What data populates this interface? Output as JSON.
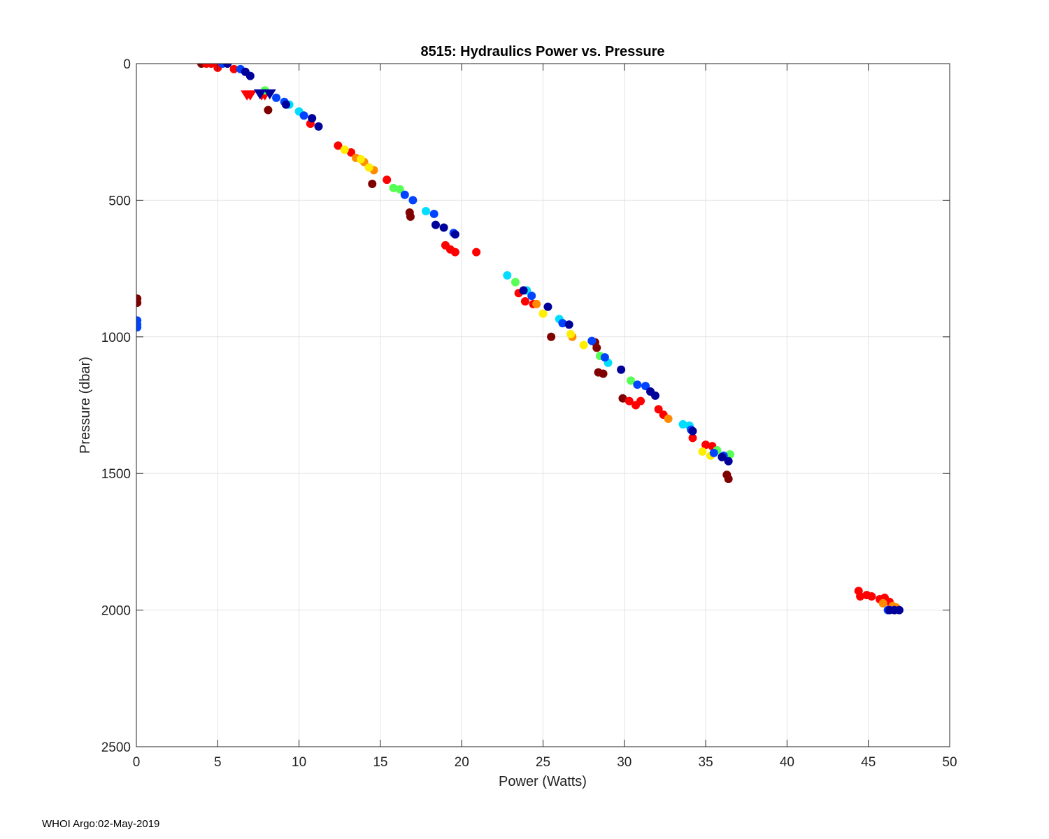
{
  "chart_data": {
    "type": "scatter",
    "title": "8515: Hydraulics Power vs. Pressure",
    "xlabel": "Power (Watts)",
    "ylabel": "Pressure (dbar)",
    "xlim": [
      0,
      50
    ],
    "ylim": [
      0,
      2500
    ],
    "y_reversed": true,
    "grid": true,
    "x_ticks": [
      "0",
      "5",
      "10",
      "15",
      "20",
      "25",
      "30",
      "35",
      "40",
      "45",
      "50"
    ],
    "y_ticks": [
      "0",
      "500",
      "1000",
      "1500",
      "2000",
      "2500"
    ],
    "color_scale": "jet (blue = early profiles, red = late profiles)",
    "series": [
      {
        "name": "dark-red",
        "color": "#800000",
        "marker": "circle",
        "points": [
          [
            0.05,
            860
          ],
          [
            0.05,
            875
          ],
          [
            4.0,
            0
          ],
          [
            8.1,
            170
          ],
          [
            14.5,
            440
          ],
          [
            16.8,
            545
          ],
          [
            16.85,
            560
          ],
          [
            25.5,
            1000
          ],
          [
            28.2,
            1020
          ],
          [
            28.3,
            1040
          ],
          [
            28.4,
            1130
          ],
          [
            28.7,
            1135
          ],
          [
            29.9,
            1225
          ],
          [
            36.3,
            1505
          ],
          [
            36.4,
            1520
          ]
        ]
      },
      {
        "name": "red",
        "color": "#ff0000",
        "marker": "circle",
        "points": [
          [
            4.3,
            0
          ],
          [
            4.6,
            0
          ],
          [
            5.0,
            15
          ],
          [
            6.0,
            20
          ],
          [
            10.7,
            220
          ],
          [
            12.4,
            300
          ],
          [
            13.2,
            325
          ],
          [
            15.4,
            425
          ],
          [
            19.0,
            665
          ],
          [
            19.3,
            680
          ],
          [
            19.6,
            690
          ],
          [
            20.9,
            690
          ],
          [
            23.5,
            840
          ],
          [
            23.9,
            870
          ],
          [
            24.4,
            880
          ],
          [
            30.3,
            1235
          ],
          [
            30.7,
            1250
          ],
          [
            31.0,
            1235
          ],
          [
            32.1,
            1265
          ],
          [
            32.4,
            1285
          ],
          [
            34.2,
            1370
          ],
          [
            35.0,
            1395
          ],
          [
            35.4,
            1400
          ],
          [
            44.4,
            1930
          ],
          [
            44.5,
            1950
          ],
          [
            44.9,
            1945
          ],
          [
            45.2,
            1950
          ],
          [
            45.7,
            1960
          ],
          [
            46.0,
            1955
          ],
          [
            46.3,
            1970
          ]
        ]
      },
      {
        "name": "red-triangle",
        "color": "#ff0000",
        "marker": "triangle",
        "points": [
          [
            6.8,
            112
          ],
          [
            7.0,
            112
          ],
          [
            7.7,
            112
          ],
          [
            7.9,
            112
          ]
        ]
      },
      {
        "name": "orange",
        "color": "#ff8c00",
        "marker": "circle",
        "points": [
          [
            13.5,
            345
          ],
          [
            14.0,
            360
          ],
          [
            14.6,
            390
          ],
          [
            24.6,
            880
          ],
          [
            26.8,
            1000
          ],
          [
            32.7,
            1300
          ],
          [
            45.9,
            1975
          ],
          [
            46.5,
            1985
          ],
          [
            46.7,
            1990
          ]
        ]
      },
      {
        "name": "yellow",
        "color": "#ffee00",
        "marker": "circle",
        "points": [
          [
            12.8,
            315
          ],
          [
            13.8,
            350
          ],
          [
            14.3,
            380
          ],
          [
            25.0,
            915
          ],
          [
            26.7,
            990
          ],
          [
            27.5,
            1030
          ],
          [
            34.8,
            1420
          ],
          [
            35.3,
            1435
          ]
        ]
      },
      {
        "name": "green",
        "color": "#55ff55",
        "marker": "circle",
        "points": [
          [
            7.9,
            98
          ],
          [
            15.8,
            455
          ],
          [
            16.2,
            460
          ],
          [
            23.3,
            800
          ],
          [
            28.5,
            1070
          ],
          [
            30.4,
            1160
          ],
          [
            35.7,
            1415
          ],
          [
            36.5,
            1430
          ]
        ]
      },
      {
        "name": "cyan",
        "color": "#00ddff",
        "marker": "circle",
        "points": [
          [
            9.4,
            150
          ],
          [
            10.0,
            175
          ],
          [
            17.8,
            540
          ],
          [
            22.8,
            775
          ],
          [
            24.0,
            830
          ],
          [
            26.0,
            935
          ],
          [
            29.0,
            1095
          ],
          [
            33.6,
            1320
          ],
          [
            34.0,
            1325
          ]
        ]
      },
      {
        "name": "blue",
        "color": "#0044ff",
        "marker": "circle",
        "points": [
          [
            0.05,
            940
          ],
          [
            0.05,
            955
          ],
          [
            0.05,
            965
          ],
          [
            5.3,
            0
          ],
          [
            6.4,
            20
          ],
          [
            8.6,
            125
          ],
          [
            9.1,
            140
          ],
          [
            10.3,
            190
          ],
          [
            16.5,
            480
          ],
          [
            17.0,
            500
          ],
          [
            18.3,
            550
          ],
          [
            19.5,
            620
          ],
          [
            24.3,
            850
          ],
          [
            26.2,
            950
          ],
          [
            28.0,
            1015
          ],
          [
            28.8,
            1075
          ],
          [
            30.8,
            1175
          ],
          [
            31.3,
            1180
          ],
          [
            34.1,
            1340
          ],
          [
            35.5,
            1425
          ],
          [
            36.1,
            1435
          ],
          [
            46.2,
            2000
          ]
        ]
      },
      {
        "name": "navy",
        "color": "#00009a",
        "marker": "circle",
        "points": [
          [
            5.6,
            0
          ],
          [
            6.7,
            30
          ],
          [
            7.0,
            45
          ],
          [
            9.2,
            150
          ],
          [
            10.8,
            200
          ],
          [
            11.2,
            230
          ],
          [
            18.4,
            590
          ],
          [
            18.9,
            600
          ],
          [
            19.6,
            625
          ],
          [
            23.8,
            830
          ],
          [
            25.3,
            890
          ],
          [
            26.6,
            955
          ],
          [
            29.8,
            1120
          ],
          [
            31.6,
            1200
          ],
          [
            31.9,
            1215
          ],
          [
            34.2,
            1345
          ],
          [
            36.0,
            1440
          ],
          [
            36.4,
            1455
          ],
          [
            46.3,
            2000
          ],
          [
            46.6,
            2000
          ],
          [
            46.9,
            2000
          ]
        ]
      },
      {
        "name": "navy-triangle",
        "color": "#00009a",
        "marker": "triangle",
        "points": [
          [
            7.6,
            108
          ],
          [
            8.2,
            108
          ]
        ]
      }
    ]
  },
  "footer": {
    "text": "WHOI Argo:02-May-2019"
  }
}
